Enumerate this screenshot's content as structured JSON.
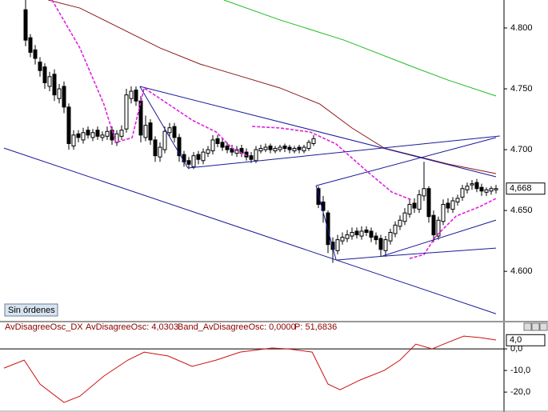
{
  "chart_data": [
    {
      "type": "candlestick",
      "open": [
        4.815,
        4.792,
        4.782,
        4.772,
        4.768,
        4.752,
        4.762,
        4.742,
        4.752,
        4.735,
        4.703,
        4.713,
        4.708,
        4.716,
        4.71,
        4.716,
        4.71,
        4.711,
        4.716,
        4.706,
        4.711,
        4.717,
        4.742,
        4.749,
        4.74,
        4.71,
        4.722,
        4.708,
        4.694,
        4.7,
        4.714,
        4.719,
        4.71,
        4.696,
        4.691,
        4.686,
        4.696,
        4.691,
        4.697,
        4.699,
        4.709,
        4.706,
        4.703,
        4.701,
        4.697,
        4.701,
        4.698,
        4.695,
        4.691,
        4.699,
        4.7,
        4.703,
        4.699,
        4.7,
        4.703,
        4.702,
        4.699,
        4.702,
        4.699,
        4.701,
        4.705,
        4.668,
        4.657,
        4.648,
        4.624,
        4.617,
        4.625,
        4.627,
        4.629,
        4.633,
        4.629,
        4.634,
        4.633,
        4.629,
        4.627,
        4.617,
        4.625,
        4.631,
        4.637,
        4.641,
        4.647,
        4.656,
        4.651,
        4.662,
        4.668,
        4.646,
        4.629,
        4.641,
        4.656,
        4.651,
        4.657,
        4.661,
        4.667,
        4.671,
        4.673,
        4.669,
        4.665,
        4.666,
        4.667
      ],
      "high": [
        4.83,
        4.795,
        4.786,
        4.776,
        4.771,
        4.764,
        4.766,
        4.754,
        4.756,
        4.738,
        4.716,
        4.716,
        4.718,
        4.719,
        4.717,
        4.719,
        4.715,
        4.719,
        4.719,
        4.716,
        4.72,
        4.75,
        4.752,
        4.752,
        4.744,
        4.728,
        4.725,
        4.711,
        4.706,
        4.719,
        4.722,
        4.722,
        4.713,
        4.699,
        4.694,
        4.698,
        4.699,
        4.701,
        4.703,
        4.712,
        4.712,
        4.709,
        4.706,
        4.704,
        4.703,
        4.704,
        4.701,
        4.698,
        4.703,
        4.704,
        4.705,
        4.705,
        4.703,
        4.704,
        4.705,
        4.704,
        4.703,
        4.704,
        4.704,
        4.708,
        4.712,
        4.67,
        4.662,
        4.65,
        4.628,
        4.63,
        4.632,
        4.634,
        4.636,
        4.636,
        4.637,
        4.637,
        4.636,
        4.632,
        4.63,
        4.629,
        4.635,
        4.641,
        4.646,
        4.652,
        4.66,
        4.66,
        4.667,
        4.69,
        4.67,
        4.65,
        4.645,
        4.659,
        4.66,
        4.661,
        4.663,
        4.671,
        4.673,
        4.675,
        4.676,
        4.672,
        4.669,
        4.67,
        4.671
      ],
      "low": [
        4.785,
        4.776,
        4.77,
        4.76,
        4.75,
        4.748,
        4.74,
        4.738,
        4.73,
        4.7,
        4.7,
        4.706,
        4.705,
        4.709,
        4.707,
        4.708,
        4.707,
        4.708,
        4.704,
        4.703,
        4.708,
        4.714,
        4.738,
        4.736,
        4.706,
        4.707,
        4.704,
        4.69,
        4.69,
        4.697,
        4.711,
        4.706,
        4.69,
        4.686,
        4.684,
        4.684,
        4.688,
        4.688,
        4.694,
        4.696,
        4.702,
        4.699,
        4.697,
        4.695,
        4.694,
        4.694,
        4.691,
        4.689,
        4.689,
        4.697,
        4.698,
        4.697,
        4.697,
        4.698,
        4.698,
        4.697,
        4.697,
        4.697,
        4.697,
        4.699,
        4.703,
        4.652,
        4.64,
        4.615,
        4.607,
        4.614,
        4.622,
        4.624,
        4.626,
        4.627,
        4.626,
        4.629,
        4.624,
        4.622,
        4.612,
        4.612,
        4.622,
        4.628,
        4.634,
        4.638,
        4.644,
        4.648,
        4.648,
        4.658,
        4.64,
        4.624,
        4.626,
        4.638,
        4.648,
        4.648,
        4.654,
        4.658,
        4.664,
        4.667,
        4.665,
        4.662,
        4.662,
        4.663,
        4.664
      ],
      "close": [
        4.79,
        4.78,
        4.775,
        4.765,
        4.755,
        4.76,
        4.745,
        4.75,
        4.735,
        4.705,
        4.712,
        4.71,
        4.714,
        4.712,
        4.714,
        4.711,
        4.712,
        4.715,
        4.708,
        4.713,
        4.716,
        4.745,
        4.748,
        4.74,
        4.712,
        4.72,
        4.708,
        4.695,
        4.702,
        4.715,
        4.718,
        4.71,
        4.695,
        4.69,
        4.688,
        4.695,
        4.692,
        4.698,
        4.7,
        4.708,
        4.705,
        4.702,
        4.7,
        4.698,
        4.7,
        4.697,
        4.694,
        4.692,
        4.7,
        4.701,
        4.702,
        4.7,
        4.701,
        4.702,
        4.701,
        4.7,
        4.701,
        4.7,
        4.702,
        4.706,
        4.709,
        4.655,
        4.65,
        4.622,
        4.618,
        4.626,
        4.628,
        4.63,
        4.632,
        4.63,
        4.633,
        4.632,
        4.628,
        4.626,
        4.618,
        4.626,
        4.632,
        4.638,
        4.642,
        4.648,
        4.655,
        4.652,
        4.663,
        4.668,
        4.645,
        4.63,
        4.642,
        4.655,
        4.652,
        4.658,
        4.66,
        4.668,
        4.67,
        4.672,
        4.668,
        4.666,
        4.667,
        4.668,
        4.668
      ],
      "up_color": "#ffffff",
      "down_color": "#000000",
      "series": [
        {
          "color": "#8b1a1a",
          "style": "solid",
          "x": [
            4.7,
            11.3,
            28,
            36.3,
            44.7,
            53,
            61.3,
            68,
            74.7,
            88,
            98
          ],
          "values": [
            4.823,
            4.8164,
            4.7836,
            4.7704,
            4.7605,
            4.7507,
            4.7375,
            4.7178,
            4.7013,
            4.6882,
            4.6803
          ]
        },
        {
          "color": "#22bb22",
          "style": "solid",
          "x": [
            41.3,
            53,
            66.3,
            81.3,
            88,
            98
          ],
          "values": [
            4.823,
            4.8066,
            4.7901,
            4.7671,
            4.7572,
            4.7441
          ]
        },
        {
          "color": "#e020e0",
          "style": "dashed",
          "x": [
            5.5,
            11.3,
            16.3,
            18.8,
            22.2,
            24.7,
            29.7,
            34.7,
            39.7,
            43,
            46.3,
            null,
            47.2,
            53,
            59.3,
            64.7,
            71.3,
            76.3,
            80.5,
            null,
            80,
            83,
            85.5,
            89.7,
            94.7,
            98
          ],
          "values": [
            4.823,
            4.7836,
            4.7375,
            4.7059,
            4.7099,
            4.7507,
            4.7375,
            4.7243,
            4.7145,
            4.7013,
            4.6947,
            null,
            4.7191,
            4.7178,
            4.7145,
            4.7046,
            4.6816,
            4.6651,
            4.6586,
            null,
            4.6105,
            4.6138,
            4.629,
            4.6454,
            4.6533,
            4.6599
          ]
        },
        {
          "color": "#1a1a99",
          "style": "solid",
          "x": [
            -4.5,
            98
          ],
          "values": [
            4.7013,
            4.5651
          ]
        },
        {
          "color": "#1a1a99",
          "style": "solid",
          "x": [
            23.8,
            98
          ],
          "values": [
            4.752,
            4.6777
          ]
        },
        {
          "color": "#1a1a99",
          "style": "solid",
          "x": [
            23.8,
            33.8
          ],
          "values": [
            4.752,
            4.6849
          ]
        },
        {
          "color": "#1a1a99",
          "style": "solid",
          "x": [
            33.8,
            98.8
          ],
          "values": [
            4.6849,
            4.7112
          ]
        },
        {
          "color": "#1a1a99",
          "style": "solid",
          "x": [
            60.5,
            64.7
          ],
          "values": [
            4.6704,
            4.6092
          ]
        },
        {
          "color": "#1a1a99",
          "style": "solid",
          "x": [
            60.5,
            98
          ],
          "values": [
            4.6704,
            4.7099
          ]
        },
        {
          "color": "#1a1a99",
          "style": "solid",
          "x": [
            64.7,
            74.7
          ],
          "values": [
            4.6092,
            4.6125
          ]
        },
        {
          "color": "#1a1a99",
          "style": "solid",
          "x": [
            74.3,
            98
          ],
          "values": [
            4.6125,
            4.6421
          ]
        },
        {
          "color": "#1a1a99",
          "style": "solid",
          "x": [
            74.7,
            98
          ],
          "values": [
            4.6125,
            4.6191
          ]
        }
      ],
      "ylim": [
        4.56,
        4.823
      ],
      "yticks": [
        {
          "value": 4.6,
          "label": "4.600"
        },
        {
          "value": 4.65,
          "label": "4.650"
        },
        {
          "value": 4.7,
          "label": "4.700"
        },
        {
          "value": 4.75,
          "label": "4.750"
        },
        {
          "value": 4.8,
          "label": "4.800"
        }
      ],
      "last": {
        "value": 4.668,
        "label": "4,668"
      }
    },
    {
      "type": "line",
      "header": [
        "AvDisagreeOsc_DX",
        "AvDisagreeOsc: 4,0303",
        "Band_AvDisagreeOsc: 0,0000",
        "P: 51,6836"
      ],
      "series": [
        {
          "color": "#cc1111",
          "style": "solid",
          "x": [
            -4.5,
            -0.3,
            3,
            8,
            11.3,
            16.3,
            21.3,
            24.7,
            29.7,
            34.7,
            39.7,
            44.7,
            51.3,
            54.7,
            59.7,
            63,
            65.5,
            69.7,
            74.7,
            78,
            81.3,
            84.7,
            88,
            91.3,
            94.7,
            98
          ],
          "values": [
            -8.9,
            -5.2,
            -16.3,
            -24.8,
            -21.9,
            -12.6,
            -5.2,
            -1.5,
            -3.3,
            -8.1,
            -5.2,
            -1.5,
            0.4,
            0,
            -1.5,
            -16.3,
            -18.9,
            -14.4,
            -10,
            -5.2,
            2.2,
            0,
            3,
            5.9,
            5.2,
            4.1
          ]
        }
      ],
      "band": 0,
      "ylim": [
        -28.1,
        7.8
      ],
      "yticks": [
        {
          "value": 0,
          "label": "0,0"
        },
        {
          "value": -10,
          "label": "-10,0"
        },
        {
          "value": -20,
          "label": "-20,0"
        }
      ],
      "last": {
        "value": 4.0,
        "label": "4,0"
      }
    }
  ],
  "button": "Sin órdenes"
}
